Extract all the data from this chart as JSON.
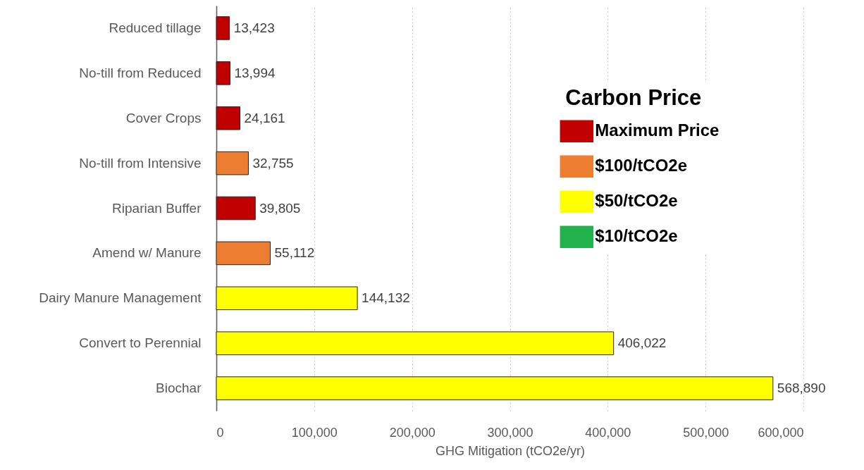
{
  "chart_data": {
    "type": "bar",
    "orientation": "horizontal",
    "stacked": true,
    "categories": [
      "Reduced tillage",
      "No-till from Reduced",
      "Cover Crops",
      "No-till from Intensive",
      "Riparian Buffer",
      "Amend w/ Manure",
      "Dairy Manure Management",
      "Convert to Perennial",
      "Biochar"
    ],
    "series": [
      {
        "name": "Maximum Price",
        "color": "#c00000",
        "values": [
          13423,
          13994,
          24161,
          null,
          39805,
          null,
          null,
          null,
          null
        ],
        "value_labels": [
          "13,423",
          "13,994",
          "24,161",
          null,
          "39,805",
          null,
          null,
          null,
          null
        ]
      },
      {
        "name": "$100/tCO2e",
        "color": "#ed7d31",
        "values": [
          null,
          null,
          null,
          32755,
          null,
          55112,
          null,
          null,
          null
        ],
        "value_labels": [
          null,
          null,
          null,
          "32,755",
          null,
          "55,112",
          null,
          null,
          null
        ]
      },
      {
        "name": "$50/tCO2e",
        "color": "#ffff00",
        "values": [
          null,
          null,
          null,
          null,
          null,
          null,
          144132,
          406022,
          568890
        ],
        "value_labels": [
          null,
          null,
          null,
          null,
          null,
          null,
          "144,132",
          "406,022",
          "568,890"
        ]
      },
      {
        "name": "$10/tCO2e",
        "color": "#22b14c",
        "values": [
          null,
          null,
          null,
          null,
          null,
          null,
          null,
          null,
          null
        ]
      }
    ],
    "xlabel": "GHG Mitigation (tCO2e/yr)",
    "legend_title": "Carbon Price",
    "xlim": [
      0,
      600000
    ],
    "xticks": [
      0,
      {
        "value": 100000,
        "label": "100,000"
      },
      {
        "value": 200000,
        "label": "200,000"
      },
      {
        "value": 300000,
        "label": "300,000"
      },
      {
        "value": 400000,
        "label": "400,000"
      },
      {
        "value": 500000,
        "label": "500,000"
      },
      {
        "value": 600000,
        "label": "600,000"
      }
    ],
    "grid": "x",
    "legend": "top right"
  }
}
